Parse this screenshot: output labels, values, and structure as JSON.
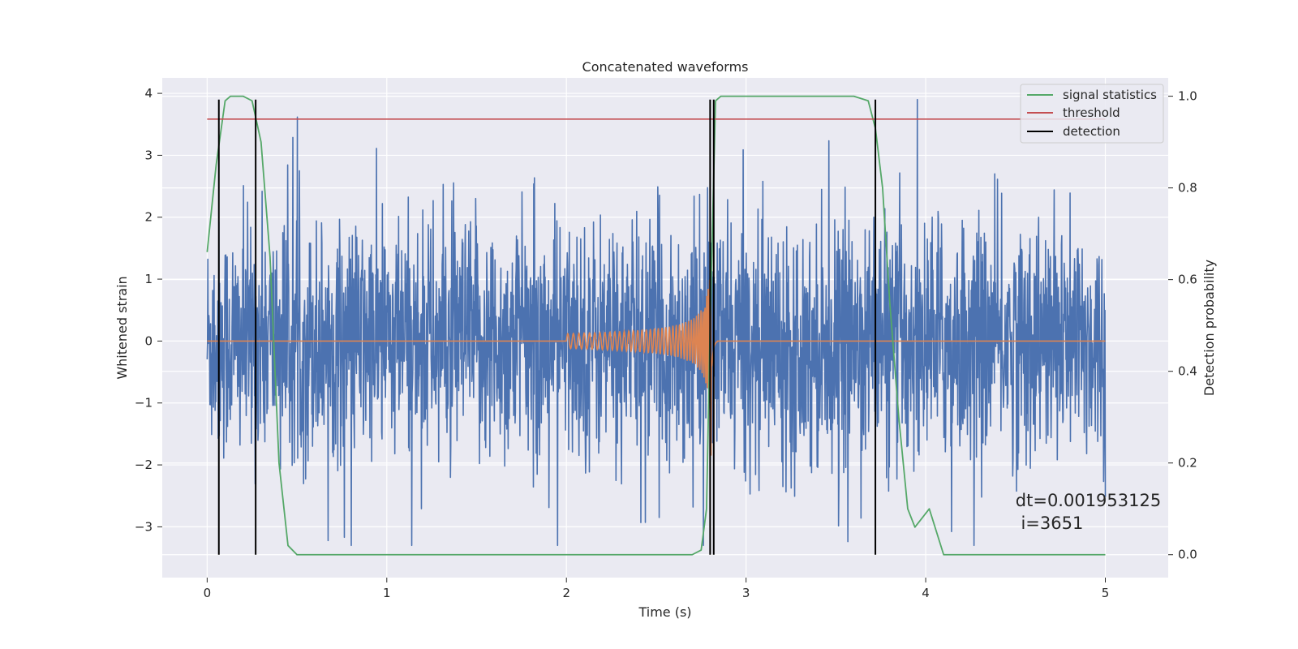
{
  "chart_data": {
    "type": "line",
    "title": "Concatenated waveforms",
    "xlabel": "Time (s)",
    "ylabel": "Whitened strain",
    "ylabel_right": "Detection probability",
    "xlim": [
      -0.25,
      5.35
    ],
    "ylim": [
      -3.82,
      4.25
    ],
    "ylim_right": [
      -0.05,
      1.04
    ],
    "x_ticks": [
      0,
      1,
      2,
      3,
      4,
      5
    ],
    "y_ticks": [
      -3,
      -2,
      -1,
      0,
      1,
      2,
      3,
      4
    ],
    "y_ticks_right": [
      0.0,
      0.2,
      0.4,
      0.6,
      0.8,
      1.0
    ],
    "y_tick_labels_right": [
      "0.0",
      "0.2",
      "0.4",
      "0.6",
      "0.8",
      "1.0"
    ],
    "grid": true,
    "legend_position": "top-right",
    "series": [
      {
        "key": "strain",
        "axis": "left",
        "color": "#4c72b0",
        "x_range": [
          0,
          5
        ],
        "amplitude_envelope": [
          -3.3,
          3.9
        ]
      },
      {
        "key": "template",
        "axis": "left",
        "color": "#dd8452",
        "chirp_start": 2.0,
        "merger": 2.81,
        "x_range": [
          0,
          5
        ]
      },
      {
        "name": "signal statistics",
        "axis": "right",
        "color": "#55a868",
        "x": [
          0.0,
          0.05,
          0.1,
          0.13,
          0.2,
          0.25,
          0.3,
          0.35,
          0.4,
          0.45,
          0.5,
          1.5,
          2.7,
          2.75,
          2.78,
          2.8,
          2.83,
          2.86,
          3.0,
          3.6,
          3.68,
          3.72,
          3.76,
          3.8,
          3.85,
          3.9,
          3.94,
          3.98,
          4.02,
          4.06,
          4.1,
          4.2,
          5.0
        ],
        "y": [
          0.66,
          0.85,
          0.99,
          1.0,
          1.0,
          0.99,
          0.9,
          0.65,
          0.2,
          0.02,
          0.0,
          0.0,
          0.0,
          0.01,
          0.1,
          0.5,
          0.99,
          1.0,
          1.0,
          1.0,
          0.99,
          0.93,
          0.8,
          0.55,
          0.3,
          0.1,
          0.06,
          0.08,
          0.1,
          0.05,
          0.0,
          0.0,
          0.0
        ]
      },
      {
        "name": "threshold",
        "axis": "right",
        "color": "#c44e52",
        "x": [
          0,
          5
        ],
        "y": [
          0.95,
          0.95
        ]
      },
      {
        "name": "detection",
        "axis": "left",
        "color": "#000000",
        "x_positions": [
          0.065,
          0.27,
          2.8,
          2.82,
          3.72
        ],
        "y_range": [
          -3.45,
          3.9
        ]
      }
    ],
    "annotation": {
      "line1": "dt=0.001953125",
      "line2": " i=3651",
      "x": 4.5,
      "y": -2.67
    }
  },
  "colors": {
    "plot_background": "#eaeaf2",
    "grid": "#ffffff",
    "text": "#262626"
  }
}
